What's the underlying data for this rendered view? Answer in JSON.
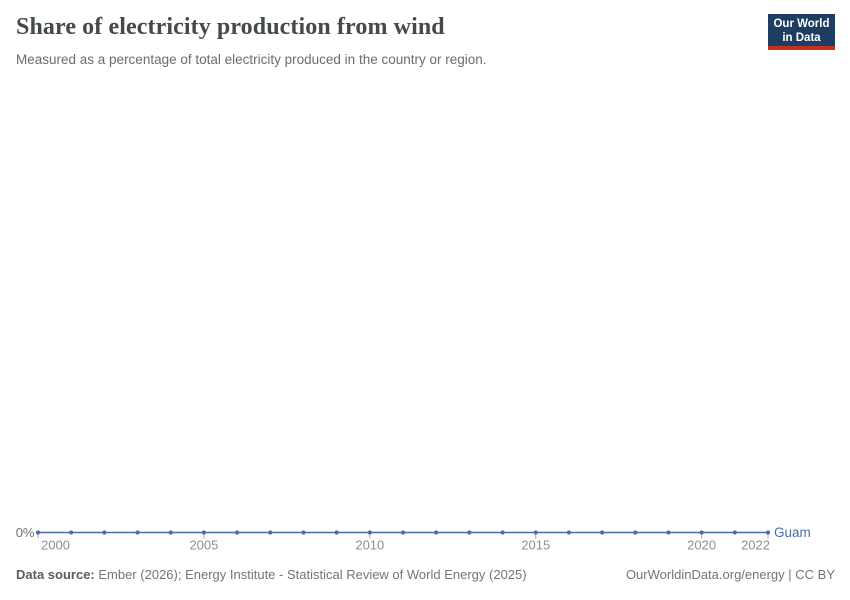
{
  "header": {
    "title": "Share of electricity production from wind",
    "subtitle": "Measured as a percentage of total electricity produced in the country or region.",
    "logo": {
      "line1": "Our World",
      "line2": "in Data",
      "bg_color": "#1d3d63",
      "stripe_color": "#c8301e"
    }
  },
  "chart_data": {
    "type": "line",
    "x": [
      2000,
      2001,
      2002,
      2003,
      2004,
      2005,
      2006,
      2007,
      2008,
      2009,
      2010,
      2011,
      2012,
      2013,
      2014,
      2015,
      2016,
      2017,
      2018,
      2019,
      2020,
      2021,
      2022
    ],
    "series": [
      {
        "name": "Guam",
        "color": "#4c6ba8",
        "values": [
          0,
          0,
          0,
          0,
          0,
          0,
          0,
          0,
          0,
          0,
          0,
          0,
          0,
          0,
          0,
          0,
          0,
          0,
          0,
          0,
          0,
          0,
          0
        ]
      }
    ],
    "title": "Share of electricity production from wind",
    "xlabel": "",
    "ylabel": "",
    "xlim": [
      2000,
      2022
    ],
    "ylim": [
      0,
      1
    ],
    "x_ticks": [
      2000,
      2005,
      2010,
      2015,
      2020,
      2022
    ],
    "y_tick_labels": [
      "0%"
    ],
    "grid": false,
    "legend_position": "end-of-line",
    "unit": "%",
    "colors": {
      "axis_text": "#8f8f8f",
      "zero_label": "#707070",
      "tick_mark": "#a5a5a5"
    }
  },
  "footer": {
    "data_source_label": "Data source:",
    "data_source_text": "Ember (2026); Energy Institute - Statistical Review of World Energy (2025)",
    "link_text": "OurWorldinData.org/energy | CC BY"
  }
}
